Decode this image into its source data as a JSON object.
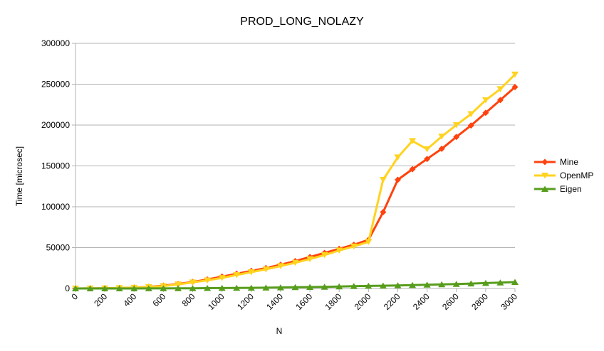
{
  "chart_data": {
    "type": "line",
    "title": "PROD_LONG_NOLAZY",
    "xlabel": "N",
    "ylabel": "Time [microsec]",
    "xlim": [
      0,
      3000
    ],
    "ylim": [
      0,
      300000
    ],
    "x_ticks": [
      0,
      200,
      400,
      600,
      800,
      1000,
      1200,
      1400,
      1600,
      1800,
      2000,
      2200,
      2400,
      2600,
      2800,
      3000
    ],
    "y_ticks": [
      0,
      50000,
      100000,
      150000,
      200000,
      250000,
      300000
    ],
    "grid": "horizontal",
    "legend_position": "right",
    "x": [
      0,
      100,
      200,
      300,
      400,
      500,
      600,
      700,
      800,
      900,
      1000,
      1100,
      1200,
      1300,
      1400,
      1500,
      1600,
      1700,
      1800,
      1900,
      2000,
      2100,
      2200,
      2300,
      2400,
      2500,
      2600,
      2700,
      2800,
      2900,
      3000
    ],
    "series": [
      {
        "name": "Mine",
        "color": "#ff420e",
        "marker": "diamond",
        "values": [
          0,
          100,
          300,
          600,
          1100,
          2000,
          3500,
          5500,
          8000,
          11000,
          14500,
          18000,
          21500,
          25000,
          29000,
          33500,
          38500,
          43500,
          48500,
          53500,
          59500,
          93500,
          133000,
          146000,
          158500,
          171000,
          185500,
          199500,
          215000,
          230500,
          246500
        ]
      },
      {
        "name": "OpenMP",
        "color": "#ffd320",
        "marker": "triangle-down",
        "values": [
          0,
          100,
          300,
          600,
          1000,
          1800,
          3000,
          5000,
          7500,
          10000,
          13000,
          16500,
          20000,
          23500,
          27500,
          31500,
          36000,
          41000,
          46500,
          51500,
          57000,
          133000,
          160500,
          180500,
          170500,
          186000,
          200000,
          213500,
          230500,
          244000,
          262000
        ]
      },
      {
        "name": "Eigen",
        "color": "#579d1c",
        "marker": "triangle-up",
        "values": [
          0,
          0,
          0,
          0,
          0,
          100,
          100,
          200,
          300,
          400,
          500,
          700,
          800,
          1000,
          1200,
          1500,
          1700,
          2000,
          2400,
          2800,
          3100,
          3400,
          3700,
          4100,
          4500,
          5000,
          5500,
          6000,
          6600,
          7200,
          7800
        ]
      }
    ]
  }
}
